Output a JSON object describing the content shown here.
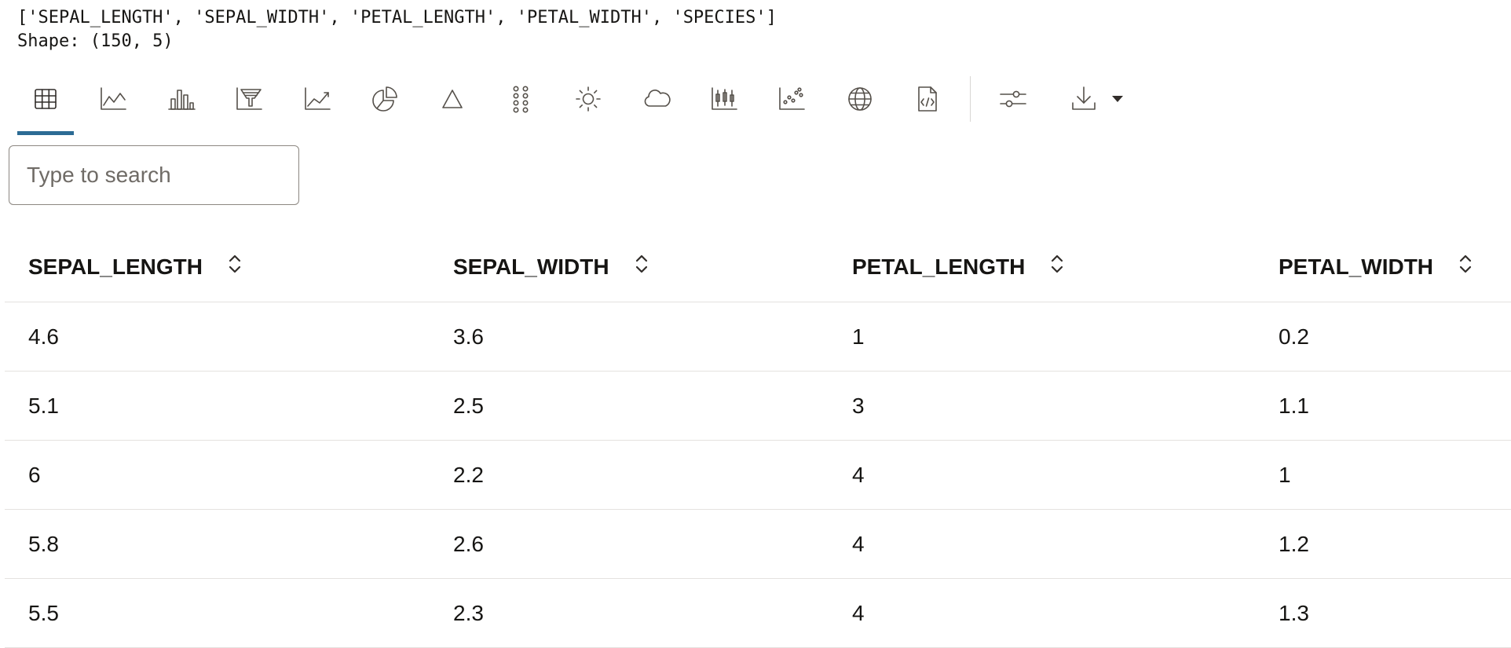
{
  "console": {
    "line1": "['SEPAL_LENGTH', 'SEPAL_WIDTH', 'PETAL_LENGTH', 'PETAL_WIDTH', 'SPECIES']",
    "line2": "Shape: (150, 5)"
  },
  "toolbar": {
    "buttons": [
      {
        "icon": "table-icon",
        "active": true
      },
      {
        "icon": "line-chart-icon"
      },
      {
        "icon": "bar-chart-icon"
      },
      {
        "icon": "funnel-chart-icon"
      },
      {
        "icon": "area-chart-icon"
      },
      {
        "icon": "pie-chart-icon"
      },
      {
        "icon": "pyramid-icon"
      },
      {
        "icon": "dot-matrix-icon"
      },
      {
        "icon": "sun-icon"
      },
      {
        "icon": "cloud-icon"
      },
      {
        "icon": "box-plot-icon"
      },
      {
        "icon": "scatter-plot-icon"
      },
      {
        "icon": "globe-icon"
      },
      {
        "icon": "code-file-icon"
      },
      {
        "icon": "settings-sliders-icon"
      },
      {
        "icon": "download-icon"
      }
    ]
  },
  "search": {
    "placeholder": "Type to search",
    "value": ""
  },
  "table": {
    "columns": [
      "SEPAL_LENGTH",
      "SEPAL_WIDTH",
      "PETAL_LENGTH",
      "PETAL_WIDTH"
    ],
    "rows": [
      [
        "4.6",
        "3.6",
        "1",
        "0.2"
      ],
      [
        "5.1",
        "2.5",
        "3",
        "1.1"
      ],
      [
        "6",
        "2.2",
        "4",
        "1"
      ],
      [
        "5.8",
        "2.6",
        "4",
        "1.2"
      ],
      [
        "5.5",
        "2.3",
        "4",
        "1.3"
      ]
    ]
  },
  "colors": {
    "active_tab_underline": "#2c6b94",
    "icon_stroke": "#55504a",
    "text": "#161513"
  }
}
